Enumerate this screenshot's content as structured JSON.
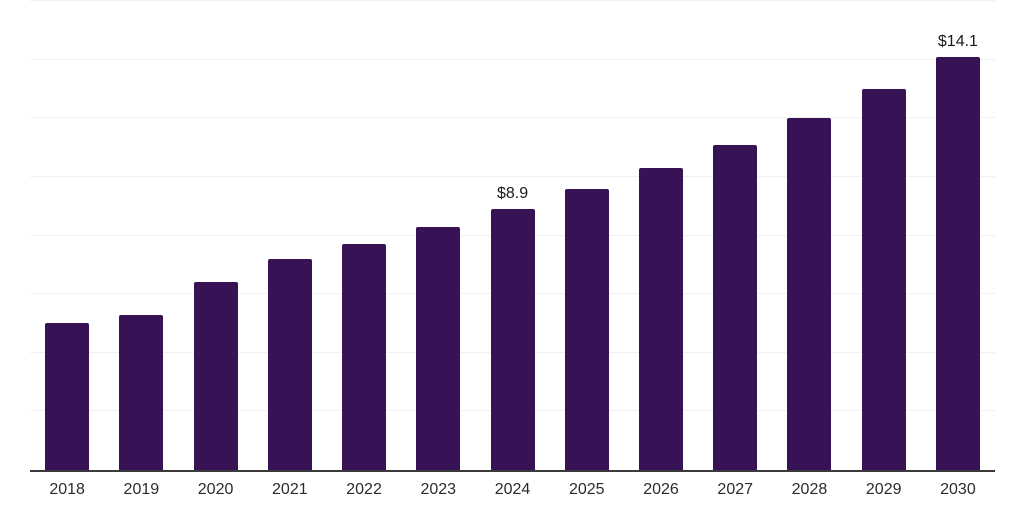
{
  "chart_data": {
    "type": "bar",
    "title": "",
    "xlabel": "",
    "ylabel": "",
    "categories": [
      "2018",
      "2019",
      "2020",
      "2021",
      "2022",
      "2023",
      "2024",
      "2025",
      "2026",
      "2027",
      "2028",
      "2029",
      "2030"
    ],
    "values": [
      5.0,
      5.3,
      6.4,
      7.2,
      7.7,
      8.3,
      8.9,
      9.6,
      10.3,
      11.1,
      12.0,
      13.0,
      14.1
    ],
    "value_labels": [
      "",
      "",
      "",
      "",
      "",
      "",
      "$8.9",
      "",
      "",
      "",
      "",
      "",
      "$14.1"
    ],
    "ylim": [
      0,
      16
    ],
    "gridline_step": 2,
    "grid": "horizontal-only",
    "legend": "none",
    "y_tick_labels_visible": false,
    "colors": {
      "bar": "#371255",
      "axis_line": "#3a3a3a",
      "gridline": "#f0f0f0",
      "value_label_text": "#1a1a1a",
      "tick_label_text": "#2b2b2b",
      "background": "#ffffff"
    }
  }
}
